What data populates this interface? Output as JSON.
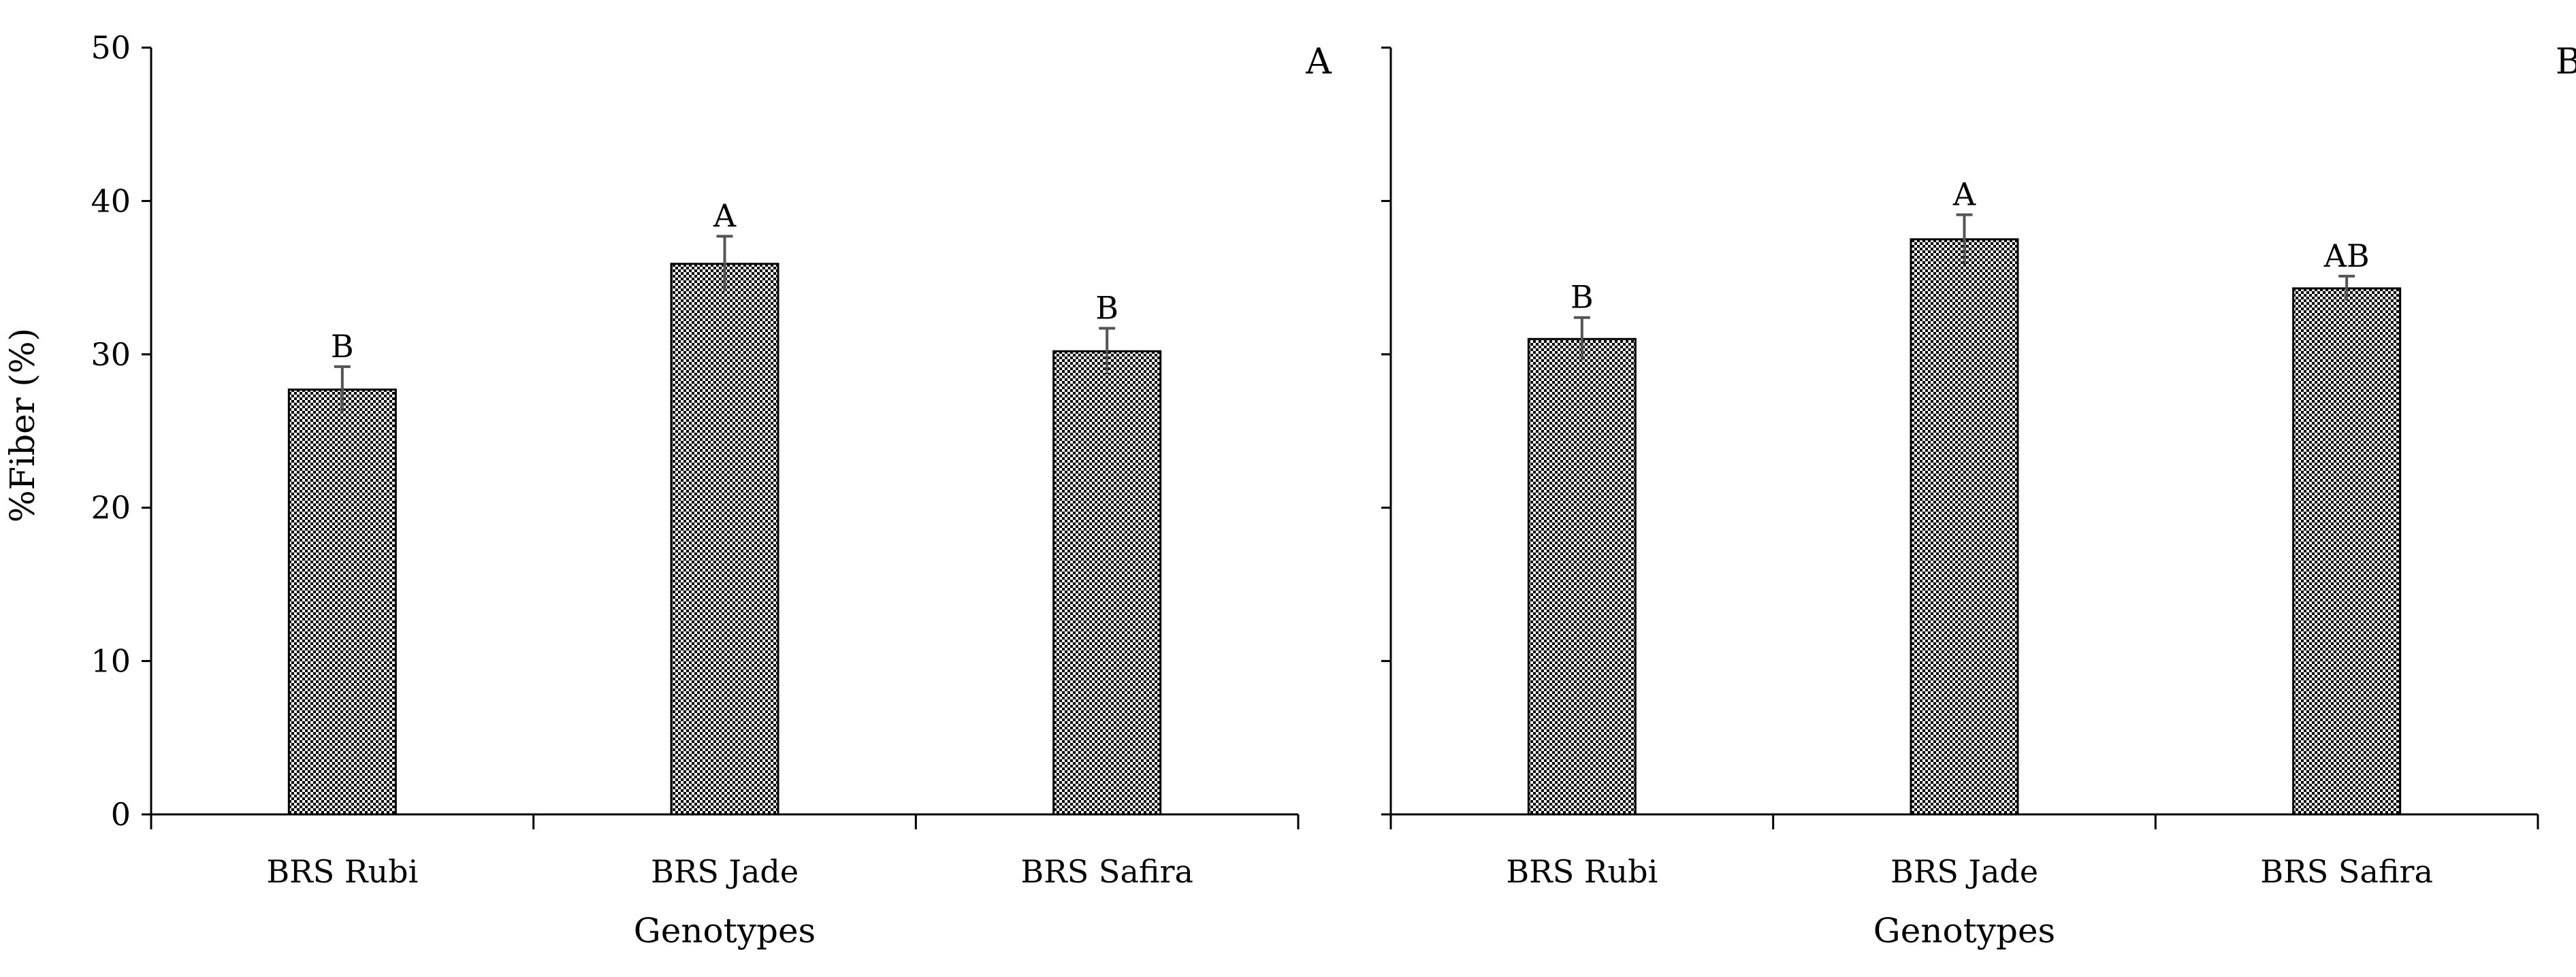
{
  "chart_data": [
    {
      "type": "bar",
      "panel_label": "A",
      "categories": [
        "BRS Rubi",
        "BRS Jade",
        "BRS Safira"
      ],
      "values": [
        27.7,
        35.9,
        30.2
      ],
      "errors": [
        1.5,
        1.8,
        1.5
      ],
      "significance_letters": [
        "B",
        "A",
        "B"
      ],
      "xlabel": "Genotypes",
      "ylabel": "%Fiber (%)",
      "ylim": [
        0,
        50
      ],
      "yticks": [
        0,
        10,
        20,
        30,
        40,
        50
      ],
      "ytick_labels_visible": true,
      "bar_fill": "checkered black/white",
      "grid": false
    },
    {
      "type": "bar",
      "panel_label": "B",
      "categories": [
        "BRS Rubi",
        "BRS Jade",
        "BRS Safira"
      ],
      "values": [
        31.0,
        37.5,
        34.3
      ],
      "errors": [
        1.4,
        1.6,
        0.8
      ],
      "significance_letters": [
        "B",
        "A",
        "AB"
      ],
      "xlabel": "Genotypes",
      "ylabel": "",
      "ylim": [
        0,
        50
      ],
      "yticks": [
        0,
        10,
        20,
        30,
        40,
        50
      ],
      "ytick_labels_visible": false,
      "bar_fill": "checkered black/white",
      "grid": false
    }
  ],
  "colors": {
    "axis": "#000000",
    "error_bar": "#555555",
    "bar_outline": "#000000"
  }
}
